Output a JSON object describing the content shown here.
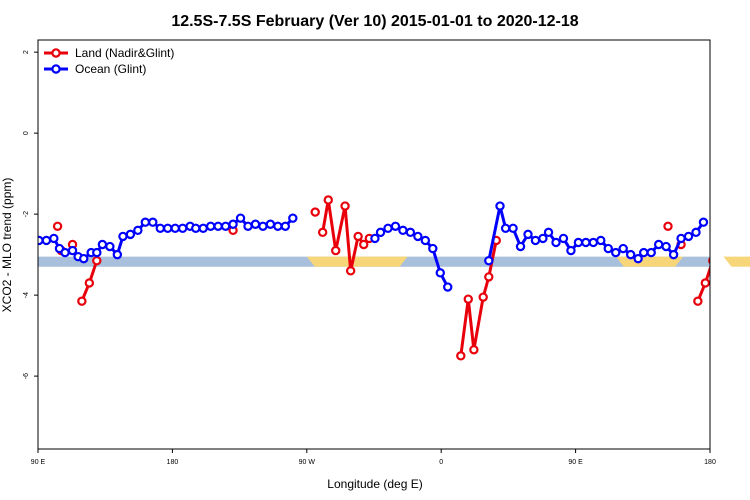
{
  "chart_data": {
    "type": "line",
    "title": "12.5S-7.5S February (Ver 10)   2015-01-01 to 2020-12-18",
    "xlabel": "Longitude (deg E)",
    "ylabel": "XCO2 - MLO trend (ppm)",
    "xlim": [
      90,
      450
    ],
    "ylim": [
      -7.8,
      2.3
    ],
    "x_ticks": [
      {
        "value": 90,
        "label": "90 E"
      },
      {
        "value": 162,
        "label": "180"
      },
      {
        "value": 234,
        "label": "90 W"
      },
      {
        "value": 306,
        "label": "0"
      },
      {
        "value": 378,
        "label": "90 E"
      },
      {
        "value": 450,
        "label": "180"
      }
    ],
    "y_ticks": [
      {
        "value": 2,
        "label": "2"
      },
      {
        "value": 0,
        "label": "0"
      },
      {
        "value": -2,
        "label": "-2"
      },
      {
        "value": -4,
        "label": "-4"
      },
      {
        "value": -6,
        "label": "-6"
      }
    ],
    "grid": false,
    "legend": "top-left",
    "background_band": {
      "y_range": [
        -3.3,
        -3.05
      ],
      "ocean_color": "#a8c0dc",
      "land_color": "#f7d67a",
      "land_segments": [
        [
          40,
          55
        ],
        [
          86,
          96
        ],
        [
          102,
          113
        ],
        [
          137,
          142
        ]
      ]
    },
    "series": [
      {
        "name": "Land (Nadir&Glint)",
        "color": "#e8000b",
        "points": [
          [
            100.5,
            -2.3
          ],
          [
            102.5,
            -2.9
          ],
          [
            108.5,
            -2.75
          ],
          [
            113.5,
            -4.15
          ],
          [
            117.5,
            -3.7
          ],
          [
            121.5,
            -3.15
          ],
          [
            194.5,
            -2.4
          ],
          [
            238.5,
            -1.95
          ],
          [
            242.5,
            -2.45
          ],
          [
            245.5,
            -1.65
          ],
          [
            249.5,
            -2.9
          ],
          [
            254.5,
            -1.8
          ],
          [
            257.5,
            -3.4
          ],
          [
            261.5,
            -2.55
          ],
          [
            264.5,
            -2.75
          ],
          [
            267.5,
            -2.6
          ],
          [
            316.5,
            -5.5
          ],
          [
            320.5,
            -4.1
          ],
          [
            323.5,
            -5.35
          ],
          [
            328.5,
            -4.05
          ],
          [
            331.5,
            -3.55
          ],
          [
            335.5,
            -2.65
          ],
          [
            427.5,
            -2.3
          ],
          [
            434.5,
            -2.75
          ],
          [
            443.5,
            -4.15
          ],
          [
            447.5,
            -3.7
          ],
          [
            451.5,
            -3.15
          ]
        ],
        "segments": [
          [
            3,
            5
          ],
          [
            8,
            15
          ],
          [
            16,
            21
          ],
          [
            24,
            26
          ]
        ]
      },
      {
        "name": "Ocean (Glint)",
        "color": "#0000ff",
        "points": [
          [
            90.5,
            -2.65
          ],
          [
            94.5,
            -2.65
          ],
          [
            98.5,
            -2.6
          ],
          [
            101.5,
            -2.85
          ],
          [
            104.5,
            -2.95
          ],
          [
            108.5,
            -2.9
          ],
          [
            111.5,
            -3.05
          ],
          [
            114.5,
            -3.1
          ],
          [
            118.5,
            -2.95
          ],
          [
            121.5,
            -2.95
          ],
          [
            124.5,
            -2.75
          ],
          [
            128.5,
            -2.8
          ],
          [
            132.5,
            -3.0
          ],
          [
            135.5,
            -2.55
          ],
          [
            139.5,
            -2.5
          ],
          [
            143.5,
            -2.4
          ],
          [
            147.5,
            -2.2
          ],
          [
            151.5,
            -2.2
          ],
          [
            155.5,
            -2.35
          ],
          [
            159.5,
            -2.35
          ],
          [
            163.5,
            -2.35
          ],
          [
            167.5,
            -2.35
          ],
          [
            171.5,
            -2.3
          ],
          [
            174.5,
            -2.35
          ],
          [
            178.5,
            -2.35
          ],
          [
            182.5,
            -2.3
          ],
          [
            186.5,
            -2.3
          ],
          [
            190.5,
            -2.3
          ],
          [
            194.5,
            -2.25
          ],
          [
            198.5,
            -2.1
          ],
          [
            202.5,
            -2.3
          ],
          [
            206.5,
            -2.25
          ],
          [
            210.5,
            -2.3
          ],
          [
            214.5,
            -2.25
          ],
          [
            218.5,
            -2.3
          ],
          [
            222.5,
            -2.3
          ],
          [
            226.5,
            -2.1
          ],
          [
            270.5,
            -2.6
          ],
          [
            273.5,
            -2.45
          ],
          [
            277.5,
            -2.35
          ],
          [
            281.5,
            -2.3
          ],
          [
            285.5,
            -2.4
          ],
          [
            289.5,
            -2.45
          ],
          [
            293.5,
            -2.55
          ],
          [
            297.5,
            -2.65
          ],
          [
            301.5,
            -2.85
          ],
          [
            305.5,
            -3.45
          ],
          [
            309.5,
            -3.8
          ],
          [
            331.5,
            -3.15
          ],
          [
            337.5,
            -1.8
          ],
          [
            340.5,
            -2.35
          ],
          [
            344.5,
            -2.35
          ],
          [
            348.5,
            -2.8
          ],
          [
            352.5,
            -2.5
          ],
          [
            356.5,
            -2.65
          ],
          [
            360.5,
            -2.6
          ],
          [
            363.5,
            -2.45
          ],
          [
            367.5,
            -2.7
          ],
          [
            371.5,
            -2.6
          ],
          [
            375.5,
            -2.9
          ],
          [
            379.5,
            -2.7
          ],
          [
            383.5,
            -2.7
          ],
          [
            387.5,
            -2.7
          ],
          [
            391.5,
            -2.65
          ],
          [
            395.5,
            -2.85
          ],
          [
            399.5,
            -2.95
          ],
          [
            403.5,
            -2.85
          ],
          [
            407.5,
            -3.0
          ],
          [
            411.5,
            -3.1
          ],
          [
            414.5,
            -2.95
          ],
          [
            418.5,
            -2.95
          ],
          [
            422.5,
            -2.75
          ],
          [
            426.5,
            -2.8
          ],
          [
            430.5,
            -3.0
          ],
          [
            434.5,
            -2.6
          ],
          [
            438.5,
            -2.55
          ],
          [
            442.5,
            -2.45
          ],
          [
            446.5,
            -2.2
          ]
        ],
        "segments": [
          [
            0,
            36
          ],
          [
            37,
            47
          ],
          [
            48,
            77
          ]
        ]
      }
    ]
  }
}
